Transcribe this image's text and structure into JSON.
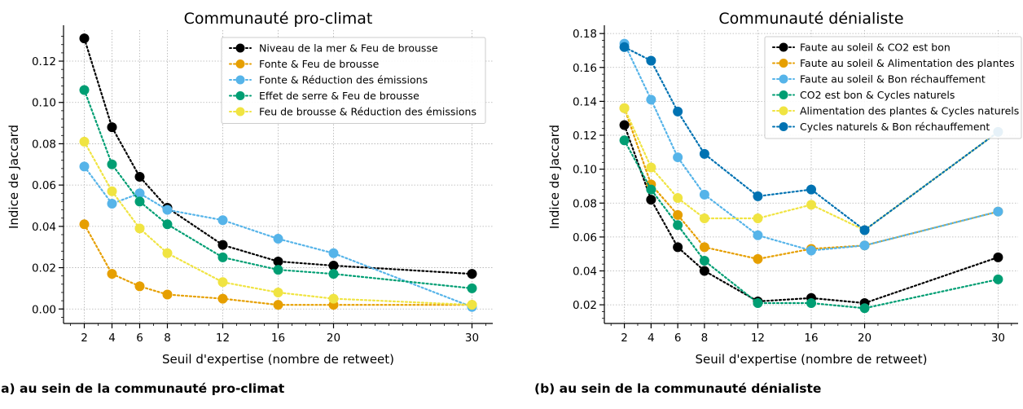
{
  "chart_data": [
    {
      "type": "line",
      "title": "Communauté pro-climat",
      "xlabel": "Seuil d'expertise (nombre de retweet)",
      "ylabel": "Indice de Jaccard",
      "x": [
        2,
        4,
        6,
        8,
        12,
        16,
        20,
        30
      ],
      "xlim": [
        0.5,
        31.5
      ],
      "ylim": [
        -0.007,
        0.135
      ],
      "yticks": [
        0.0,
        0.02,
        0.04,
        0.06,
        0.08,
        0.1,
        0.12
      ],
      "ytick_labels": [
        "0.00",
        "0.02",
        "0.04",
        "0.06",
        "0.08",
        "0.10",
        "0.12"
      ],
      "grid": true,
      "legend_position": "top-right",
      "series": [
        {
          "name": "Niveau de la mer & Feu de brousse",
          "color": "#000000",
          "values": [
            0.131,
            0.088,
            0.064,
            0.049,
            0.031,
            0.023,
            0.021,
            0.017
          ]
        },
        {
          "name": "Fonte & Feu de brousse",
          "color": "#E69F00",
          "values": [
            0.041,
            0.017,
            0.011,
            0.007,
            0.005,
            0.002,
            0.002,
            0.002
          ]
        },
        {
          "name": "Fonte & Réduction des émissions",
          "color": "#56B4E9",
          "values": [
            0.069,
            0.051,
            0.056,
            0.048,
            0.043,
            0.034,
            0.027,
            0.001
          ]
        },
        {
          "name": "Effet de serre & Feu de brousse",
          "color": "#009E73",
          "values": [
            0.106,
            0.07,
            0.052,
            0.041,
            0.025,
            0.019,
            0.017,
            0.01
          ]
        },
        {
          "name": "Feu de brousse & Réduction des émissions",
          "color": "#F0E442",
          "values": [
            0.081,
            0.057,
            0.039,
            0.027,
            0.013,
            0.008,
            0.005,
            0.002
          ]
        }
      ],
      "caption": "(a) au sein de la communauté pro-climat"
    },
    {
      "type": "line",
      "title": "Communauté dénialiste",
      "xlabel": "Seuil d'expertise (nombre de retweet)",
      "ylabel": "Indice de Jaccard",
      "x": [
        2,
        4,
        6,
        8,
        12,
        16,
        20,
        30
      ],
      "xlim": [
        0.5,
        31.5
      ],
      "ylim": [
        0.009,
        0.182
      ],
      "yticks": [
        0.02,
        0.04,
        0.06,
        0.08,
        0.1,
        0.12,
        0.14,
        0.16,
        0.18
      ],
      "ytick_labels": [
        "0.02",
        "0.04",
        "0.06",
        "0.08",
        "0.10",
        "0.12",
        "0.14",
        "0.16",
        "0.18"
      ],
      "grid": true,
      "legend_position": "top-right",
      "series": [
        {
          "name": "Faute au soleil & CO2 est bon",
          "color": "#000000",
          "values": [
            0.126,
            0.082,
            0.054,
            0.04,
            0.022,
            0.024,
            0.021,
            0.048
          ]
        },
        {
          "name": "Faute au soleil & Alimentation des plantes",
          "color": "#E69F00",
          "values": [
            0.136,
            0.091,
            0.073,
            0.054,
            0.047,
            0.053,
            0.055,
            0.075
          ]
        },
        {
          "name": "Faute au soleil & Bon réchauffement",
          "color": "#56B4E9",
          "values": [
            0.174,
            0.141,
            0.107,
            0.085,
            0.061,
            0.052,
            0.055,
            0.075
          ]
        },
        {
          "name": "CO2 est bon & Cycles naturels",
          "color": "#009E73",
          "values": [
            0.117,
            0.088,
            0.067,
            0.046,
            0.021,
            0.021,
            0.018,
            0.035
          ]
        },
        {
          "name": "Alimentation des plantes & Cycles naturels",
          "color": "#F0E442",
          "values": [
            0.136,
            0.101,
            0.083,
            0.071,
            0.071,
            0.079,
            0.064,
            0.122
          ]
        },
        {
          "name": "Cycles naturels & Bon réchauffement",
          "color": "#0072B2",
          "values": [
            0.172,
            0.164,
            0.134,
            0.109,
            0.084,
            0.088,
            0.064,
            0.122
          ]
        }
      ],
      "caption": "(b) au sein de la communauté dénialiste"
    }
  ]
}
